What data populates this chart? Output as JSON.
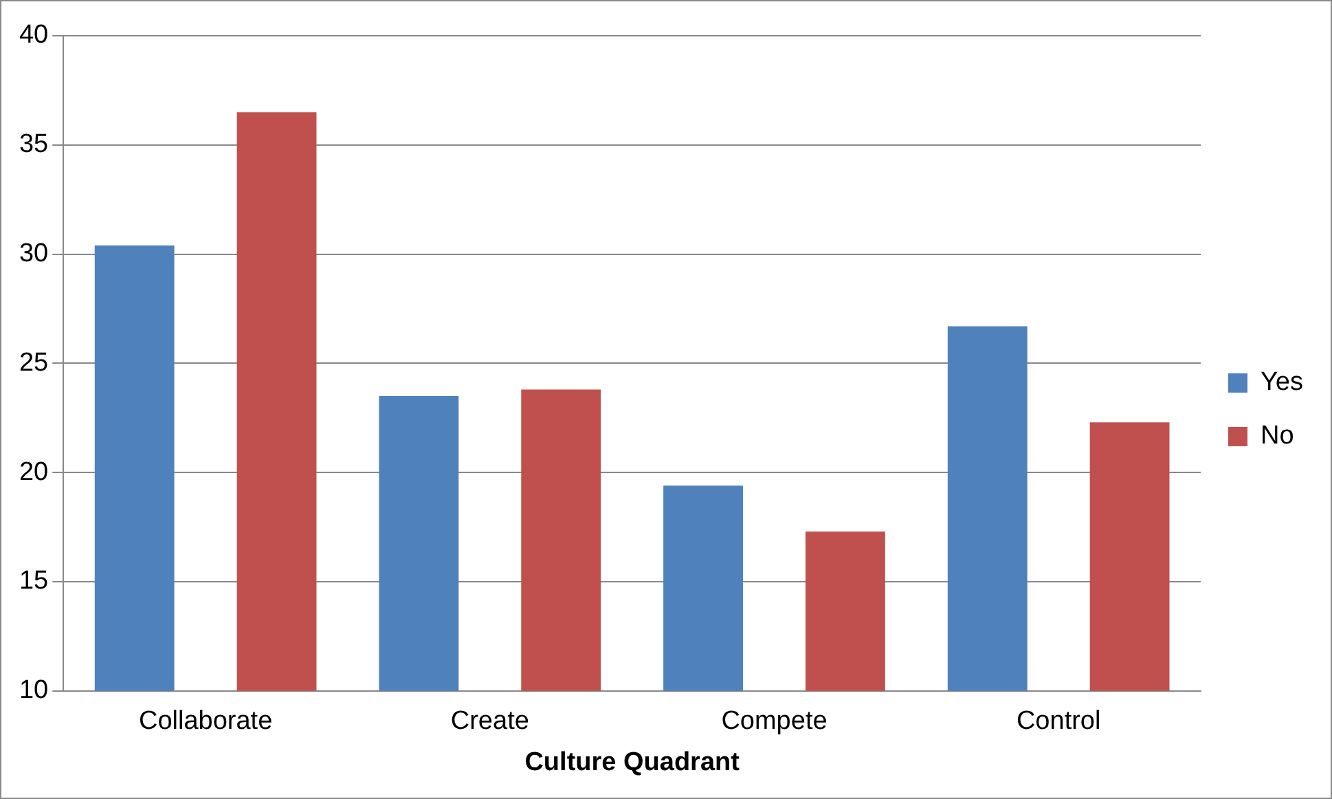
{
  "chart_data": {
    "type": "bar",
    "xlabel": "Culture Quadrant",
    "categories": [
      "Collaborate",
      "Create",
      "Compete",
      "Control"
    ],
    "series": [
      {
        "name": "Yes",
        "color": "#4f81bd",
        "values": [
          30.4,
          23.5,
          19.4,
          26.7
        ]
      },
      {
        "name": "No",
        "color": "#c0504d",
        "values": [
          36.5,
          23.8,
          17.3,
          22.3
        ]
      }
    ],
    "ylim": [
      10,
      40
    ],
    "yticks": [
      10,
      15,
      20,
      25,
      30,
      35,
      40
    ],
    "grid": "y",
    "legend": "right"
  }
}
